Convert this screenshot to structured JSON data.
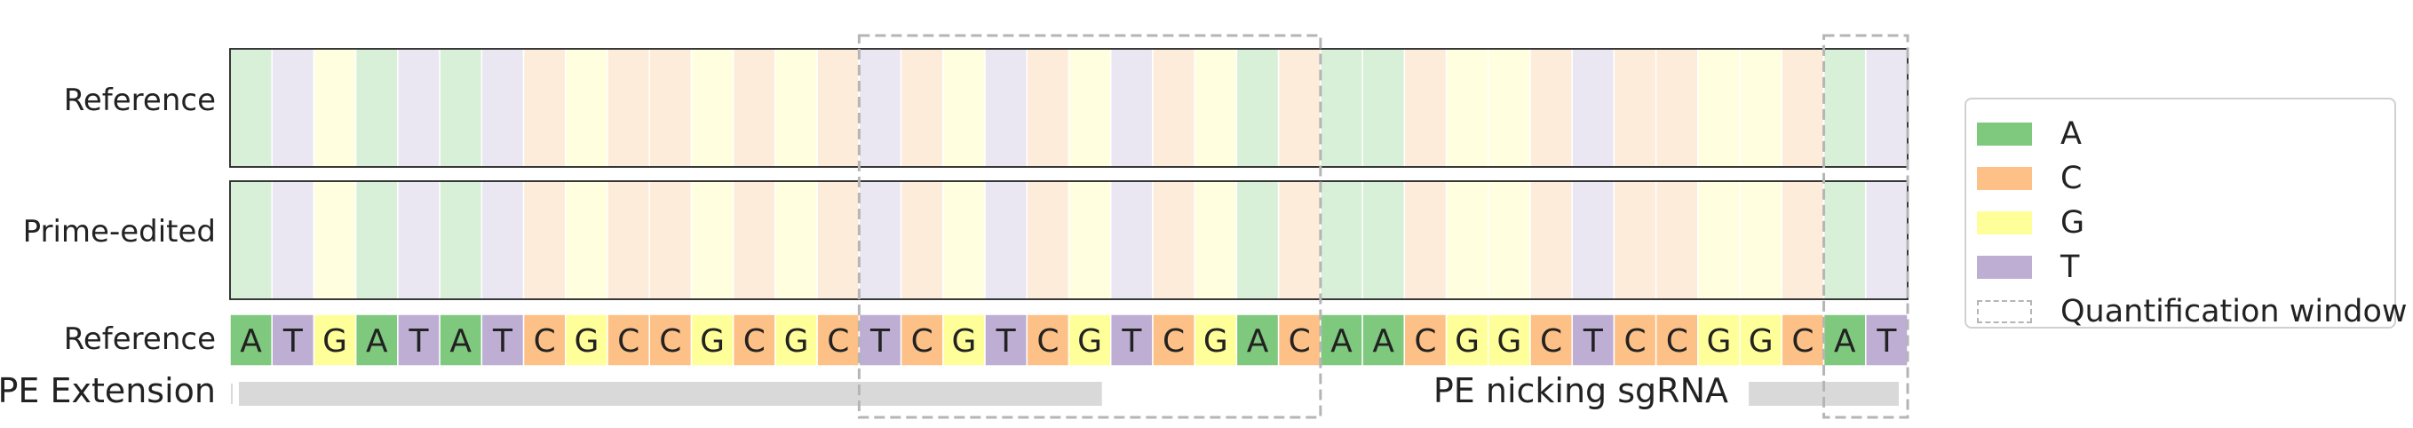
{
  "chart_data": {
    "type": "sequence-heatmap",
    "row_labels": [
      "Reference",
      "Prime-edited"
    ],
    "sequence_row_label": "Reference",
    "sequence": "ATGATATCGCCGCGCTCGTCGTCGACAACGGCTCCGGCAT",
    "base_colors": {
      "A": "#7fc97f",
      "C": "#fdc086",
      "G": "#ffff99",
      "T": "#beaed4"
    },
    "quantification_windows": [
      [
        15,
        25
      ],
      [
        38,
        39
      ]
    ],
    "annotations": [
      {
        "label": "PE Extension",
        "start": 0,
        "end": 20
      },
      {
        "label": "PE nicking sgRNA",
        "start": 36,
        "end": 39
      }
    ],
    "legend": {
      "items": [
        {
          "label": "A",
          "color": "#7fc97f"
        },
        {
          "label": "C",
          "color": "#fdc086"
        },
        {
          "label": "G",
          "color": "#ffff99"
        },
        {
          "label": "T",
          "color": "#beaed4"
        },
        {
          "label": "Quantification window",
          "style": "dashed"
        }
      ],
      "position": "right"
    }
  }
}
